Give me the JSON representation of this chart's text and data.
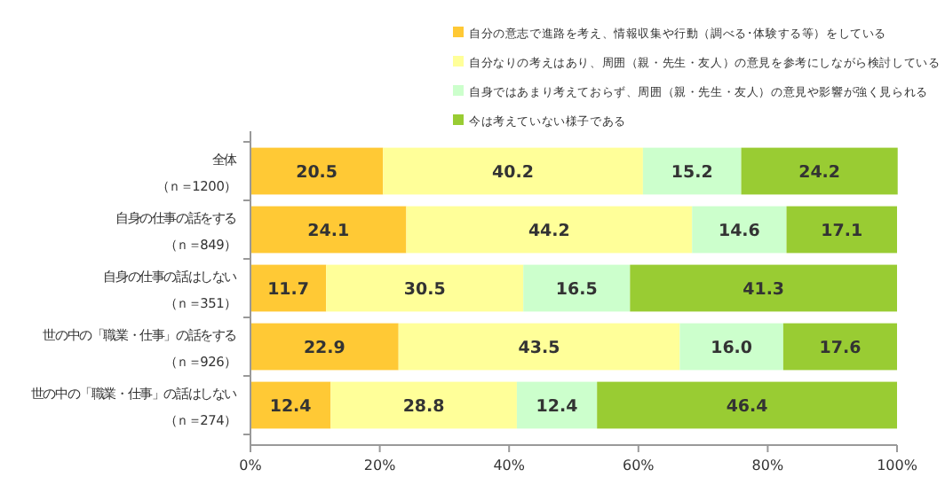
{
  "chart_data": {
    "type": "bar",
    "orientation": "horizontal",
    "stacked": true,
    "legend": "top",
    "grid": false,
    "categories": [
      "全体（ｎ＝1200）",
      "自身の仕事の話をする（ｎ＝849）",
      "自身の仕事の話はしない（ｎ＝351）",
      "世の中の「職業・仕事」の話をする（ｎ＝926）",
      "世の中の「職業・仕事」の話はしない（ｎ＝274）"
    ],
    "xlim": [
      0,
      100
    ],
    "xticks": [
      {
        "value": 0,
        "label": "0%"
      },
      {
        "value": 20,
        "label": "20%"
      },
      {
        "value": 40,
        "label": "40%"
      },
      {
        "value": 60,
        "label": "60%"
      },
      {
        "value": 80,
        "label": "80%"
      },
      {
        "value": 100,
        "label": "100%"
      }
    ],
    "series": [
      {
        "name": "自分の意志で進路を考え、情報収集や行動（調べる･体験する等）をしている",
        "color": "#ffc935",
        "values": [
          20.5,
          24.1,
          11.7,
          22.9,
          12.4
        ],
        "value_labels": [
          "20.5",
          "24.1",
          "11.7",
          "22.9",
          "12.4"
        ]
      },
      {
        "name": "自分なりの考えはあり、周囲（親・先生・友人）の意見を参考にしながら検討している",
        "color": "#ffff99",
        "values": [
          40.2,
          44.2,
          30.5,
          43.5,
          28.8
        ],
        "value_labels": [
          "40.2",
          "44.2",
          "30.5",
          "43.5",
          "28.8"
        ]
      },
      {
        "name": "自身ではあまり考えておらず、周囲（親・先生・友人）の意見や影響が強く見られる",
        "color": "#ccffcc",
        "values": [
          15.2,
          14.6,
          16.5,
          16.0,
          12.4
        ],
        "value_labels": [
          "15.2",
          "14.6",
          "16.5",
          "16.0",
          "12.4"
        ]
      },
      {
        "name": "今は考えていない様子である",
        "color": "#99cc33",
        "values": [
          24.2,
          17.1,
          41.3,
          17.6,
          46.4
        ],
        "value_labels": [
          "24.2",
          "17.1",
          "41.3",
          "17.6",
          "46.4"
        ]
      }
    ]
  }
}
